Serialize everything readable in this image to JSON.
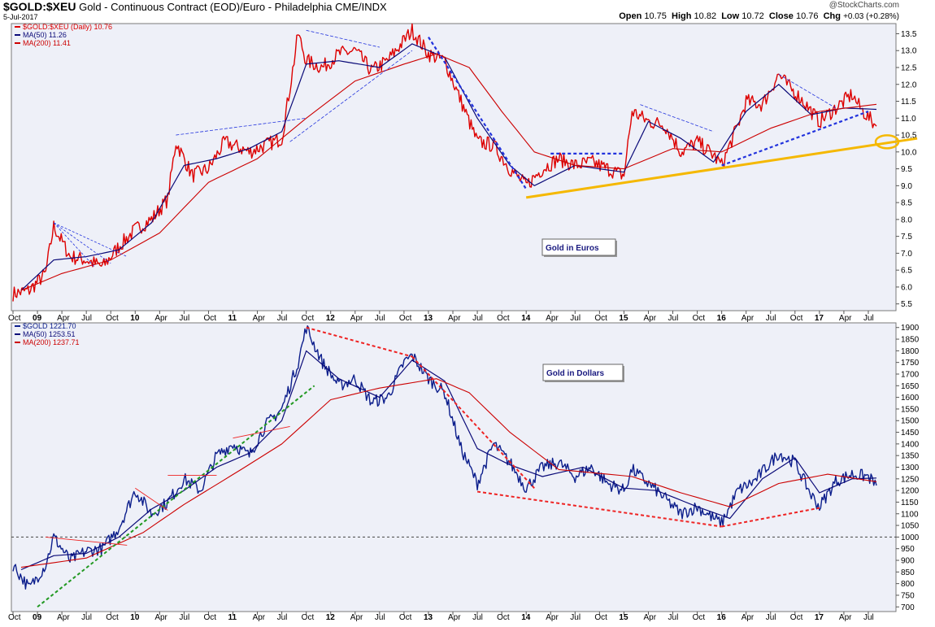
{
  "header": {
    "symbol": "$GOLD:$XEU",
    "description": "Gold - Continuous Contract (EOD)/Euro - Philadelphia  CME/INDX",
    "date": "5-Jul-2017",
    "brand": "@StockCharts.com",
    "open_label": "Open",
    "open": "10.75",
    "high_label": "High",
    "high": "10.82",
    "low_label": "Low",
    "low": "10.72",
    "close_label": "Close",
    "close": "10.76",
    "chg_label": "Chg",
    "chg": "+0.03 (+0.28%)"
  },
  "colors": {
    "panel_bg": "#eef0f8",
    "euro_price": "#dd0000",
    "dollar_price": "#0c1e8c",
    "ma50": "#0a0a78",
    "ma200": "#cc0000",
    "trend_blue": "#2233dd",
    "trend_red": "#ee2222",
    "trend_green": "#229922",
    "support_yellow": "#f5b800",
    "annotation_border": "#666666"
  },
  "chart_data": [
    {
      "type": "line",
      "panel": "top",
      "title": "",
      "legend_position": "top-left",
      "legend": [
        {
          "label": "$GOLD:$XEU (Daily) 10.76",
          "color": "#dd0000"
        },
        {
          "label": "MA(50) 11.26",
          "color": "#0a0a78"
        },
        {
          "label": "MA(200) 11.41",
          "color": "#cc0000"
        }
      ],
      "ylim": [
        5.3,
        13.8
      ],
      "y_ticks": [
        "5.5",
        "6.0",
        "6.5",
        "7.0",
        "7.5",
        "8.0",
        "8.5",
        "9.0",
        "9.5",
        "10.0",
        "10.5",
        "11.0",
        "11.5",
        "12.0",
        "12.5",
        "13.0",
        "13.5"
      ],
      "x_ticks": [
        "Oct",
        "09",
        "Apr",
        "Jul",
        "Oct",
        "10",
        "Apr",
        "Jul",
        "Oct",
        "11",
        "Apr",
        "Jul",
        "Oct",
        "12",
        "Apr",
        "Jul",
        "Oct",
        "13",
        "Apr",
        "Jul",
        "Oct",
        "14",
        "Apr",
        "Jul",
        "Oct",
        "15",
        "Apr",
        "Jul",
        "Oct",
        "16",
        "Apr",
        "Jul",
        "Oct",
        "17",
        "Apr",
        "Jul"
      ],
      "grid": false,
      "annotation": "Gold in Euros",
      "series": [
        {
          "name": "$GOLD:$XEU",
          "x": [
            "2008-09",
            "2008-11",
            "2009-01",
            "2009-02",
            "2009-04",
            "2009-06",
            "2009-08",
            "2009-10",
            "2009-12",
            "2010-02",
            "2010-04",
            "2010-05",
            "2010-07",
            "2010-09",
            "2010-11",
            "2010-12",
            "2011-02",
            "2011-04",
            "2011-06",
            "2011-07",
            "2011-08",
            "2011-09",
            "2011-11",
            "2012-01",
            "2012-03",
            "2012-05",
            "2012-07",
            "2012-09",
            "2012-10",
            "2012-12",
            "2013-02",
            "2013-04",
            "2013-06",
            "2013-08",
            "2013-10",
            "2013-12",
            "2014-02",
            "2014-04",
            "2014-06",
            "2014-08",
            "2014-10",
            "2014-12",
            "2015-01",
            "2015-03",
            "2015-05",
            "2015-07",
            "2015-09",
            "2015-11",
            "2015-12",
            "2016-02",
            "2016-03",
            "2016-05",
            "2016-07",
            "2016-08",
            "2016-10",
            "2016-12",
            "2017-02",
            "2017-04",
            "2017-05",
            "2017-07"
          ],
          "values": [
            5.8,
            5.9,
            6.4,
            7.8,
            6.9,
            6.8,
            6.6,
            7.2,
            7.7,
            8.0,
            8.6,
            10.3,
            9.3,
            9.5,
            10.3,
            10.2,
            10.0,
            10.2,
            10.4,
            11.9,
            13.5,
            12.7,
            12.5,
            12.9,
            13.0,
            12.4,
            12.7,
            13.3,
            13.6,
            12.9,
            12.7,
            11.5,
            10.3,
            10.2,
            9.5,
            9.0,
            9.5,
            9.8,
            9.6,
            9.7,
            9.5,
            9.3,
            11.2,
            10.9,
            10.8,
            10.0,
            10.3,
            9.9,
            9.6,
            10.8,
            11.5,
            11.4,
            12.3,
            12.0,
            11.5,
            10.9,
            11.3,
            11.7,
            11.3,
            10.76
          ]
        },
        {
          "name": "MA(50)",
          "x": [
            "2008-10",
            "2009-02",
            "2009-06",
            "2009-10",
            "2010-02",
            "2010-06",
            "2010-10",
            "2011-02",
            "2011-06",
            "2011-09",
            "2012-01",
            "2012-06",
            "2012-10",
            "2013-02",
            "2013-06",
            "2013-10",
            "2014-01",
            "2014-06",
            "2014-12",
            "2015-03",
            "2015-07",
            "2015-11",
            "2016-03",
            "2016-07",
            "2016-11",
            "2017-03",
            "2017-07"
          ],
          "values": [
            5.9,
            6.8,
            6.9,
            7.1,
            7.9,
            9.6,
            9.8,
            10.1,
            10.6,
            12.6,
            12.7,
            12.5,
            13.2,
            12.8,
            11.0,
            9.6,
            9.0,
            9.6,
            9.4,
            10.9,
            10.4,
            9.7,
            11.2,
            12.0,
            11.1,
            11.3,
            11.26
          ]
        },
        {
          "name": "MA(200)",
          "x": [
            "2008-10",
            "2009-03",
            "2009-09",
            "2010-03",
            "2010-09",
            "2011-03",
            "2011-09",
            "2012-03",
            "2012-09",
            "2013-01",
            "2013-05",
            "2013-09",
            "2014-01",
            "2014-06",
            "2014-12",
            "2015-06",
            "2015-12",
            "2016-06",
            "2016-12",
            "2017-07"
          ],
          "values": [
            5.9,
            6.4,
            6.8,
            7.6,
            9.1,
            9.8,
            11.0,
            12.1,
            12.6,
            12.9,
            12.5,
            11.2,
            10.0,
            9.6,
            9.5,
            10.1,
            10.0,
            10.7,
            11.2,
            11.41
          ]
        }
      ]
    },
    {
      "type": "line",
      "panel": "bottom",
      "title": "",
      "legend_position": "top-left",
      "legend": [
        {
          "label": "$GOLD 1221.70",
          "color": "#0c1e8c"
        },
        {
          "label": "MA(50) 1253.51",
          "color": "#0a0a78"
        },
        {
          "label": "MA(200) 1237.71",
          "color": "#cc0000"
        }
      ],
      "ylim": [
        680,
        1920
      ],
      "y_ticks": [
        "700",
        "750",
        "800",
        "850",
        "900",
        "950",
        "1000",
        "1050",
        "1100",
        "1150",
        "1200",
        "1250",
        "1300",
        "1350",
        "1400",
        "1450",
        "1500",
        "1550",
        "1600",
        "1650",
        "1700",
        "1750",
        "1800",
        "1850",
        "1900"
      ],
      "x_ticks": [
        "Oct",
        "09",
        "Apr",
        "Jul",
        "Oct",
        "10",
        "Apr",
        "Jul",
        "Oct",
        "11",
        "Apr",
        "Jul",
        "Oct",
        "12",
        "Apr",
        "Jul",
        "Oct",
        "13",
        "Apr",
        "Jul",
        "Oct",
        "14",
        "Apr",
        "Jul",
        "Oct",
        "15",
        "Apr",
        "Jul",
        "Oct",
        "16",
        "Apr",
        "Jul",
        "Oct",
        "17",
        "Apr",
        "Jul"
      ],
      "grid": false,
      "reference_line": 1000,
      "annotation": "Gold in Dollars",
      "series": [
        {
          "name": "$GOLD",
          "x": [
            "2008-09",
            "2008-11",
            "2009-01",
            "2009-02",
            "2009-04",
            "2009-06",
            "2009-08",
            "2009-10",
            "2009-12",
            "2010-02",
            "2010-04",
            "2010-06",
            "2010-08",
            "2010-10",
            "2010-12",
            "2011-02",
            "2011-04",
            "2011-06",
            "2011-08",
            "2011-09",
            "2011-11",
            "2012-01",
            "2012-03",
            "2012-05",
            "2012-07",
            "2012-09",
            "2012-10",
            "2012-12",
            "2013-02",
            "2013-04",
            "2013-06",
            "2013-08",
            "2013-10",
            "2013-12",
            "2014-02",
            "2014-04",
            "2014-06",
            "2014-08",
            "2014-10",
            "2014-12",
            "2015-01",
            "2015-04",
            "2015-07",
            "2015-09",
            "2015-11",
            "2015-12",
            "2016-02",
            "2016-04",
            "2016-07",
            "2016-09",
            "2016-11",
            "2016-12",
            "2017-02",
            "2017-04",
            "2017-06",
            "2017-07"
          ],
          "values": [
            880,
            780,
            880,
            1000,
            900,
            940,
            950,
            1040,
            1200,
            1100,
            1150,
            1250,
            1200,
            1350,
            1400,
            1350,
            1480,
            1550,
            1750,
            1900,
            1750,
            1650,
            1680,
            1580,
            1600,
            1750,
            1780,
            1680,
            1620,
            1380,
            1230,
            1400,
            1320,
            1210,
            1300,
            1320,
            1260,
            1300,
            1230,
            1200,
            1290,
            1200,
            1100,
            1130,
            1080,
            1060,
            1200,
            1240,
            1360,
            1320,
            1180,
            1130,
            1240,
            1270,
            1260,
            1221.7
          ]
        },
        {
          "name": "MA(50)",
          "x": [
            "2008-10",
            "2009-02",
            "2009-06",
            "2009-10",
            "2010-02",
            "2010-06",
            "2010-10",
            "2011-02",
            "2011-06",
            "2011-09",
            "2012-01",
            "2012-06",
            "2012-10",
            "2013-02",
            "2013-06",
            "2013-10",
            "2014-02",
            "2014-07",
            "2014-12",
            "2015-04",
            "2015-09",
            "2016-01",
            "2016-05",
            "2016-09",
            "2016-12",
            "2017-04",
            "2017-07"
          ],
          "values": [
            860,
            920,
            930,
            1000,
            1120,
            1200,
            1300,
            1360,
            1500,
            1800,
            1680,
            1600,
            1760,
            1670,
            1380,
            1310,
            1260,
            1300,
            1210,
            1200,
            1130,
            1080,
            1250,
            1340,
            1190,
            1250,
            1253.51
          ]
        },
        {
          "name": "MA(200)",
          "x": [
            "2008-10",
            "2009-06",
            "2010-01",
            "2010-06",
            "2011-01",
            "2011-06",
            "2011-12",
            "2012-06",
            "2013-01",
            "2013-05",
            "2013-10",
            "2014-04",
            "2015-01",
            "2015-07",
            "2016-01",
            "2016-07",
            "2017-01",
            "2017-07"
          ],
          "values": [
            870,
            910,
            1020,
            1140,
            1290,
            1400,
            1590,
            1640,
            1680,
            1620,
            1450,
            1290,
            1260,
            1190,
            1130,
            1230,
            1270,
            1237.71
          ]
        }
      ]
    }
  ]
}
